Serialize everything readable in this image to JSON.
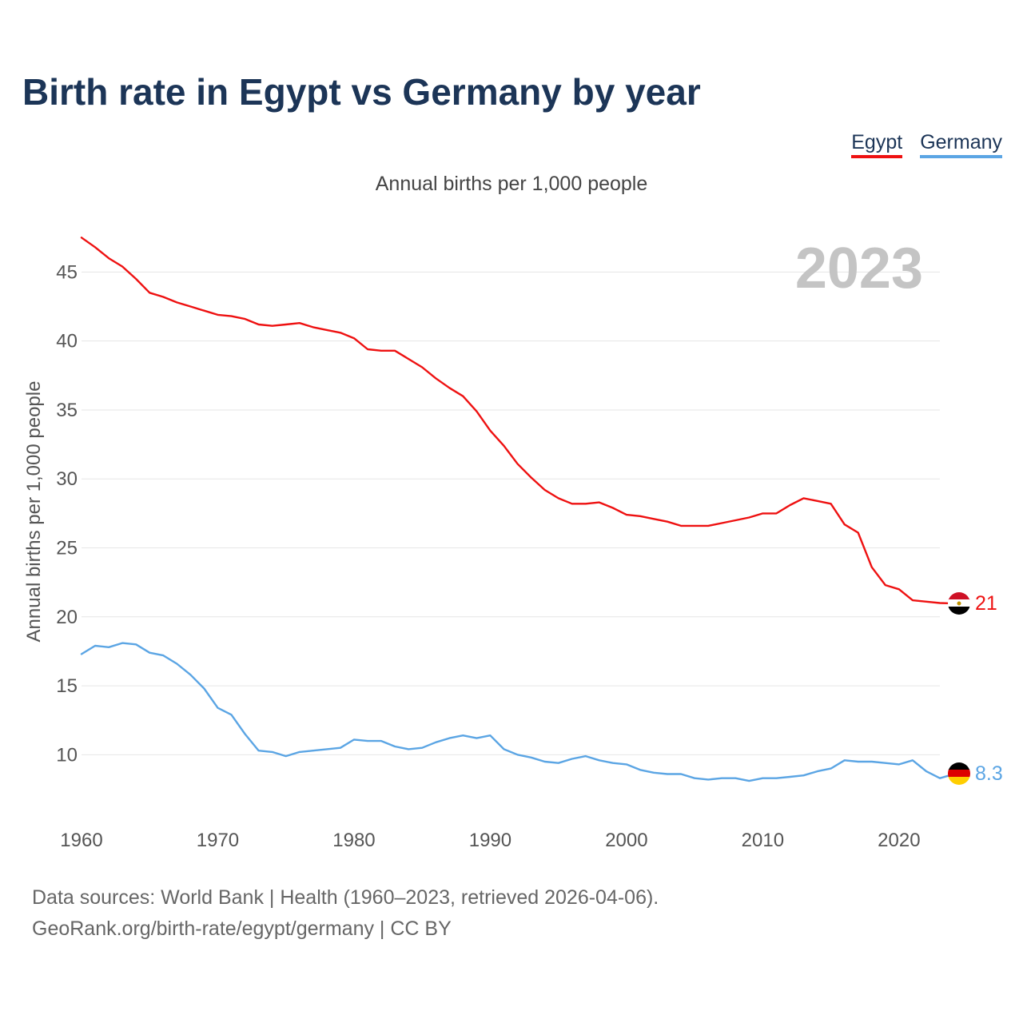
{
  "title": "Birth rate in Egypt vs Germany by year",
  "subtitle": "Annual births per 1,000 people",
  "source_line1": "Data sources: World Bank | Health (1960–2023, retrieved 2026-04-06).",
  "source_line2": "GeoRank.org/birth-rate/egypt/germany | CC BY",
  "chart_data": {
    "type": "line",
    "title": "Birth rate in Egypt vs Germany by year",
    "subtitle": "Annual births per 1,000 people",
    "xlabel": "",
    "ylabel": "Annual births per 1,000 people",
    "year_label": "2023",
    "xlim": [
      1960,
      2023
    ],
    "ylim": [
      5.5,
      48.5
    ],
    "x_ticks": [
      1960,
      1970,
      1980,
      1990,
      2000,
      2010,
      2020
    ],
    "y_ticks": [
      10,
      15,
      20,
      25,
      30,
      35,
      40,
      45
    ],
    "legend_position": "top-right",
    "x": [
      1960,
      1961,
      1962,
      1963,
      1964,
      1965,
      1966,
      1967,
      1968,
      1969,
      1970,
      1971,
      1972,
      1973,
      1974,
      1975,
      1976,
      1977,
      1978,
      1979,
      1980,
      1981,
      1982,
      1983,
      1984,
      1985,
      1986,
      1987,
      1988,
      1989,
      1990,
      1991,
      1992,
      1993,
      1994,
      1995,
      1996,
      1997,
      1998,
      1999,
      2000,
      2001,
      2002,
      2003,
      2004,
      2005,
      2006,
      2007,
      2008,
      2009,
      2010,
      2011,
      2012,
      2013,
      2014,
      2015,
      2016,
      2017,
      2018,
      2019,
      2020,
      2021,
      2022,
      2023
    ],
    "series": [
      {
        "name": "Egypt",
        "color": "#ee1111",
        "end_label": "21",
        "flag": "egypt-flag",
        "values": [
          47.5,
          46.8,
          46.0,
          45.4,
          44.5,
          43.5,
          43.2,
          42.8,
          42.5,
          42.2,
          41.9,
          41.8,
          41.6,
          41.2,
          41.1,
          41.2,
          41.3,
          41.0,
          40.8,
          40.6,
          40.2,
          39.4,
          39.3,
          39.3,
          38.7,
          38.1,
          37.3,
          36.6,
          36.0,
          34.9,
          33.5,
          32.4,
          31.1,
          30.1,
          29.2,
          28.6,
          28.2,
          28.2,
          28.3,
          27.9,
          27.4,
          27.3,
          27.1,
          26.9,
          26.6,
          26.6,
          26.6,
          26.8,
          27.0,
          27.2,
          27.5,
          27.5,
          28.1,
          28.6,
          28.4,
          28.2,
          26.7,
          26.1,
          23.6,
          22.3,
          22.0,
          21.2,
          21.1,
          21.0
        ]
      },
      {
        "name": "Germany",
        "color": "#5ba5e4",
        "end_label": "8.3",
        "flag": "germany-flag",
        "values": [
          17.3,
          17.9,
          17.8,
          18.1,
          18.0,
          17.4,
          17.2,
          16.6,
          15.8,
          14.8,
          13.4,
          12.9,
          11.5,
          10.3,
          10.2,
          9.9,
          10.2,
          10.3,
          10.4,
          10.5,
          11.1,
          11.0,
          11.0,
          10.6,
          10.4,
          10.5,
          10.9,
          11.2,
          11.4,
          11.2,
          11.4,
          10.4,
          10.0,
          9.8,
          9.5,
          9.4,
          9.7,
          9.9,
          9.6,
          9.4,
          9.3,
          8.9,
          8.7,
          8.6,
          8.6,
          8.3,
          8.2,
          8.3,
          8.3,
          8.1,
          8.3,
          8.3,
          8.4,
          8.5,
          8.8,
          9.0,
          9.6,
          9.5,
          9.5,
          9.4,
          9.3,
          9.6,
          8.8,
          8.3
        ]
      }
    ]
  }
}
